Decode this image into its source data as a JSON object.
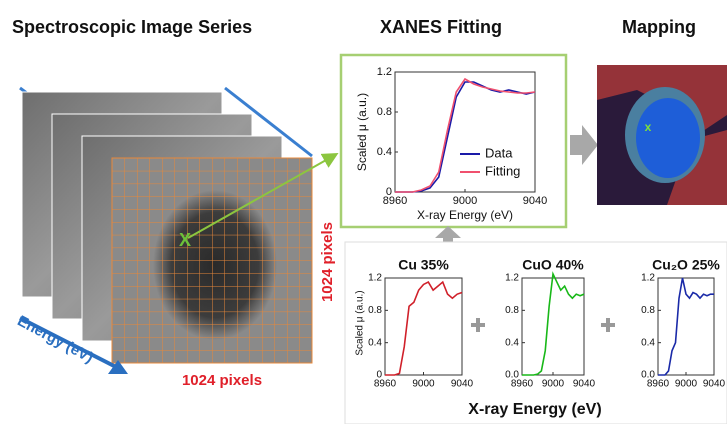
{
  "titles": {
    "image_series": "Spectroscopic Image Series",
    "fitting": "XANES Fitting",
    "mapping": "Mapping"
  },
  "image": {
    "marker": "X",
    "width_label": "1024 pixels",
    "height_label": "1024 pixels",
    "energy_label": "Energy (eV)"
  },
  "map": {
    "marker": "x"
  },
  "fit_plot": {
    "type": "line",
    "x": [
      8960,
      8965,
      8970,
      8975,
      8980,
      8985,
      8990,
      8995,
      9000,
      9005,
      9010,
      9015,
      9020,
      9025,
      9030,
      9035,
      9040
    ],
    "series": [
      {
        "name": "Data",
        "color": "#1a1aa8",
        "values": [
          0,
          0,
          0,
          0.01,
          0.04,
          0.15,
          0.55,
          0.95,
          1.1,
          1.1,
          1.06,
          1.02,
          1.0,
          1.02,
          1.0,
          0.98,
          1.0
        ]
      },
      {
        "name": "Fitting",
        "color": "#f0506e",
        "values": [
          0,
          0,
          0,
          0.02,
          0.06,
          0.2,
          0.62,
          1.0,
          1.13,
          1.08,
          1.05,
          1.03,
          1.01,
          1.0,
          0.99,
          0.99,
          1.0
        ]
      }
    ],
    "xlim": [
      8960,
      9040
    ],
    "xticks": [
      8960,
      9000,
      9040
    ],
    "ylim": [
      0,
      1.2
    ],
    "yticks": [
      0,
      0.4,
      0.8,
      1.2
    ],
    "xlabel": "X-ray Energy (eV)",
    "ylabel": "Scaled μ (a.u.)"
  },
  "components": [
    {
      "title": "Cu 35%",
      "type": "line",
      "x": [
        8960,
        8965,
        8970,
        8975,
        8980,
        8985,
        8990,
        8995,
        9000,
        9005,
        9010,
        9015,
        9020,
        9025,
        9030,
        9035,
        9040
      ],
      "series": [
        {
          "color": "#d0202a",
          "values": [
            0,
            0,
            0,
            0.02,
            0.35,
            0.85,
            0.9,
            1.05,
            1.12,
            1.15,
            1.05,
            1.1,
            1.15,
            1.0,
            0.95,
            1.0,
            1.02
          ]
        }
      ],
      "xlim": [
        8960,
        9040
      ],
      "xticks": [
        8960,
        9000,
        9040
      ],
      "ylim": [
        0,
        1.2
      ],
      "yticks": [
        0,
        0.4,
        0.8,
        1.2
      ]
    },
    {
      "title": "CuO 40%",
      "type": "line",
      "x": [
        8960,
        8965,
        8970,
        8975,
        8980,
        8985,
        8990,
        8995,
        9000,
        9005,
        9010,
        9015,
        9020,
        9025,
        9030,
        9035,
        9040
      ],
      "series": [
        {
          "color": "#18b818",
          "values": [
            0,
            0,
            0,
            0,
            0.01,
            0.05,
            0.3,
            0.85,
            1.25,
            1.15,
            1.05,
            1.1,
            1.0,
            0.95,
            1.0,
            0.98,
            1.0
          ]
        }
      ],
      "xlim": [
        8960,
        9040
      ],
      "xticks": [
        8960,
        9000,
        9040
      ],
      "ylim": [
        0,
        1.2
      ],
      "yticks": [
        {
          "value": 0,
          "label": "0.0"
        },
        0.4,
        0.8,
        1.2
      ]
    },
    {
      "title": "Cu₂O 25%",
      "type": "line",
      "x": [
        8960,
        8965,
        8970,
        8975,
        8980,
        8985,
        8990,
        8995,
        9000,
        9005,
        9010,
        9015,
        9020,
        9025,
        9030,
        9035,
        9040
      ],
      "series": [
        {
          "color": "#1a2aa8",
          "values": [
            0,
            0,
            0,
            0.05,
            0.3,
            0.4,
            0.95,
            1.2,
            1.0,
            0.95,
            1.02,
            1.0,
            0.95,
            1.0,
            0.98,
            1.0,
            1.0
          ]
        }
      ],
      "xlim": [
        8960,
        9040
      ],
      "xticks": [
        8960,
        9000,
        9040
      ],
      "ylim": [
        0,
        1.2
      ],
      "yticks": [
        {
          "value": 0,
          "label": "0.0"
        },
        0.4,
        0.8,
        1.2
      ]
    }
  ],
  "components_xlabel": "X-ray Energy (eV)",
  "components_ylabel": "Scaled μ (a.u.)"
}
